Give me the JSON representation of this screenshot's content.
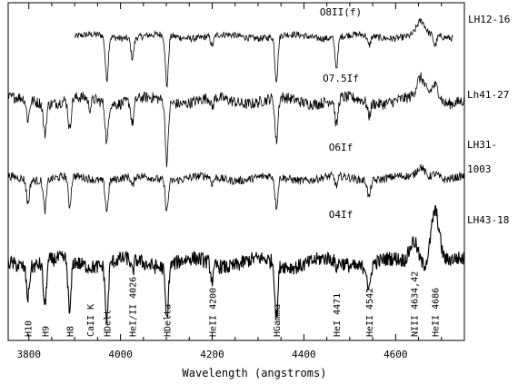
{
  "chart_data": {
    "type": "line",
    "xlabel": "Wavelength (angstroms)",
    "ylabel": "",
    "xlim": [
      3755,
      4750
    ],
    "ylim": [
      0,
      10
    ],
    "grid": false,
    "xticks": [
      3800,
      4000,
      4200,
      4400,
      4600
    ],
    "xtick_labels": [
      "3800",
      "4000",
      "4200",
      "4400",
      "4600"
    ],
    "series": [
      {
        "star": "LH12-16",
        "spectral_type": "O8II(f)",
        "x_start": 3900,
        "x_end": 4725,
        "baseline": 9.0,
        "noise": 0.1,
        "lines": [
          {
            "x": 3970,
            "depth": 1.3
          },
          {
            "x": 4026,
            "depth": 0.6
          },
          {
            "x": 4101,
            "depth": 1.5
          },
          {
            "x": 4200,
            "depth": 0.3
          },
          {
            "x": 4340,
            "depth": 1.3
          },
          {
            "x": 4471,
            "depth": 0.9
          },
          {
            "x": 4542,
            "depth": 0.3
          },
          {
            "x": 4655,
            "depth": -0.4
          },
          {
            "x": 4686,
            "depth": 0.3
          }
        ]
      },
      {
        "star": "Lh41-27",
        "spectral_type": "O7.5If",
        "x_start": 3755,
        "x_end": 4750,
        "baseline": 7.1,
        "noise": 0.17,
        "lines": [
          {
            "x": 3798,
            "depth": 0.6
          },
          {
            "x": 3835,
            "depth": 0.9
          },
          {
            "x": 3889,
            "depth": 0.9
          },
          {
            "x": 3933,
            "depth": 0.3
          },
          {
            "x": 3970,
            "depth": 1.2
          },
          {
            "x": 4026,
            "depth": 0.7
          },
          {
            "x": 4101,
            "depth": 1.8
          },
          {
            "x": 4200,
            "depth": 0.3
          },
          {
            "x": 4340,
            "depth": 1.3
          },
          {
            "x": 4471,
            "depth": 0.8
          },
          {
            "x": 4542,
            "depth": 0.4
          },
          {
            "x": 4655,
            "depth": -0.6
          },
          {
            "x": 4686,
            "depth": -0.5
          }
        ]
      },
      {
        "star": "LH31-1003",
        "spectral_type": "O6If",
        "x_start": 3755,
        "x_end": 4750,
        "baseline": 4.8,
        "noise": 0.12,
        "lines": [
          {
            "x": 3798,
            "depth": 0.7
          },
          {
            "x": 3835,
            "depth": 0.9
          },
          {
            "x": 3889,
            "depth": 0.9
          },
          {
            "x": 3970,
            "depth": 0.9
          },
          {
            "x": 4026,
            "depth": 0.3
          },
          {
            "x": 4101,
            "depth": 0.9
          },
          {
            "x": 4200,
            "depth": 0.2
          },
          {
            "x": 4340,
            "depth": 0.9
          },
          {
            "x": 4471,
            "depth": 0.3
          },
          {
            "x": 4542,
            "depth": 0.5
          },
          {
            "x": 4655,
            "depth": -0.35
          },
          {
            "x": 4686,
            "depth": -0.2
          }
        ]
      },
      {
        "star": "LH43-18",
        "spectral_type": "O4If",
        "x_start": 3755,
        "x_end": 4750,
        "baseline": 2.3,
        "noise": 0.22,
        "lines": [
          {
            "x": 3798,
            "depth": 0.9
          },
          {
            "x": 3835,
            "depth": 1.3
          },
          {
            "x": 3889,
            "depth": 1.6
          },
          {
            "x": 3970,
            "depth": 1.7
          },
          {
            "x": 4026,
            "depth": 0.4
          },
          {
            "x": 4101,
            "depth": 1.6
          },
          {
            "x": 4200,
            "depth": 0.5
          },
          {
            "x": 4340,
            "depth": 1.6
          },
          {
            "x": 4471,
            "depth": 0.2
          },
          {
            "x": 4542,
            "depth": 0.8
          },
          {
            "x": 4640,
            "depth": -0.7
          },
          {
            "x": 4686,
            "depth": -1.6
          }
        ]
      }
    ],
    "line_ids": [
      {
        "x": 3798,
        "text": "H10"
      },
      {
        "x": 3835,
        "text": "H9"
      },
      {
        "x": 3889,
        "text": "H8"
      },
      {
        "x": 3933,
        "text": "CaII K"
      },
      {
        "x": 3970,
        "text": "HDelt"
      },
      {
        "x": 4026,
        "text": "HeI/II 4026"
      },
      {
        "x": 4101,
        "text": "HDelta"
      },
      {
        "x": 4200,
        "text": "HeII 4200"
      },
      {
        "x": 4340,
        "text": "HGamma"
      },
      {
        "x": 4471,
        "text": "HeI 4471"
      },
      {
        "x": 4542,
        "text": "HeII 4542"
      },
      {
        "x": 4640,
        "text": "NIII 4634,42"
      },
      {
        "x": 4686,
        "text": "HeII 4686"
      }
    ]
  }
}
